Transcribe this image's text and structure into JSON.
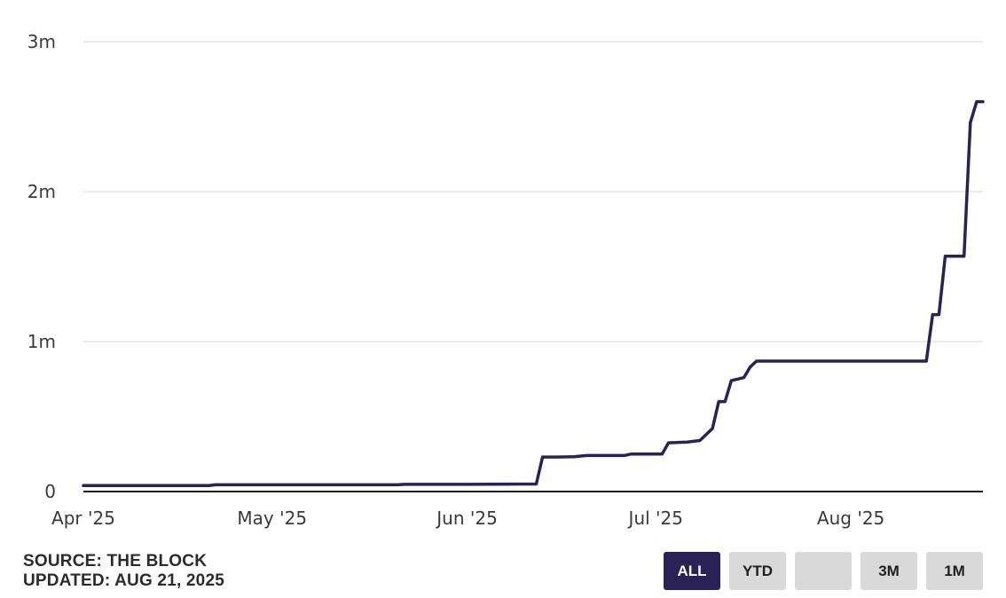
{
  "chart_data": {
    "type": "line",
    "x": [
      "2025-04-01",
      "2025-04-21",
      "2025-04-22",
      "2025-05-21",
      "2025-05-22",
      "2025-06-01",
      "2025-06-12",
      "2025-06-13",
      "2025-06-15",
      "2025-06-18",
      "2025-06-20",
      "2025-06-26",
      "2025-06-27",
      "2025-07-02",
      "2025-07-03",
      "2025-07-06",
      "2025-07-07",
      "2025-07-08",
      "2025-07-10",
      "2025-07-11",
      "2025-07-12",
      "2025-07-13",
      "2025-07-14",
      "2025-07-15",
      "2025-07-16",
      "2025-07-17",
      "2025-07-18",
      "2025-07-19",
      "2025-07-20",
      "2025-07-21",
      "2025-07-22",
      "2025-07-23",
      "2025-08-13",
      "2025-08-14",
      "2025-08-15",
      "2025-08-16",
      "2025-08-17",
      "2025-08-19",
      "2025-08-20",
      "2025-08-21",
      "2025-08-22"
    ],
    "series": [
      {
        "color": "#2a2157",
        "values": [
          40000,
          40000,
          45000,
          45000,
          48000,
          48000,
          50000,
          230000,
          230000,
          232000,
          240000,
          240000,
          250000,
          250000,
          325000,
          330000,
          335000,
          340000,
          420000,
          600000,
          600000,
          740000,
          750000,
          760000,
          830000,
          870000,
          870000,
          870000,
          870000,
          870000,
          870000,
          870000,
          870000,
          1180000,
          1180000,
          1570000,
          1570000,
          1570000,
          2460000,
          2600000,
          2600000
        ]
      }
    ],
    "ylim": [
      0,
      3000000
    ],
    "y_ticks": [
      {
        "value": 0,
        "label": "0"
      },
      {
        "value": 1000000,
        "label": "1m"
      },
      {
        "value": 2000000,
        "label": "2m"
      },
      {
        "value": 3000000,
        "label": "3m"
      }
    ],
    "x_ticks": [
      {
        "value": "2025-04-01",
        "label": "Apr '25"
      },
      {
        "value": "2025-05-01",
        "label": "May '25"
      },
      {
        "value": "2025-06-01",
        "label": "Jun '25"
      },
      {
        "value": "2025-07-01",
        "label": "Jul '25"
      },
      {
        "value": "2025-08-01",
        "label": "Aug '25"
      }
    ],
    "xlim": [
      "2025-04-01",
      "2025-08-22"
    ],
    "grid": true,
    "gridline_color": "#e6e6e6",
    "axis_color": "#1a1a1a"
  },
  "source": {
    "line1": "SOURCE: THE BLOCK",
    "line2": "UPDATED: AUG 21, 2025"
  },
  "range_buttons": [
    {
      "label": "ALL",
      "active": true
    },
    {
      "label": "YTD",
      "active": false
    },
    {
      "label": "",
      "active": false
    },
    {
      "label": "3M",
      "active": false
    },
    {
      "label": "1M",
      "active": false
    }
  ],
  "colors": {
    "accent": "#2a2157",
    "button_bg": "#d9d9d9"
  }
}
